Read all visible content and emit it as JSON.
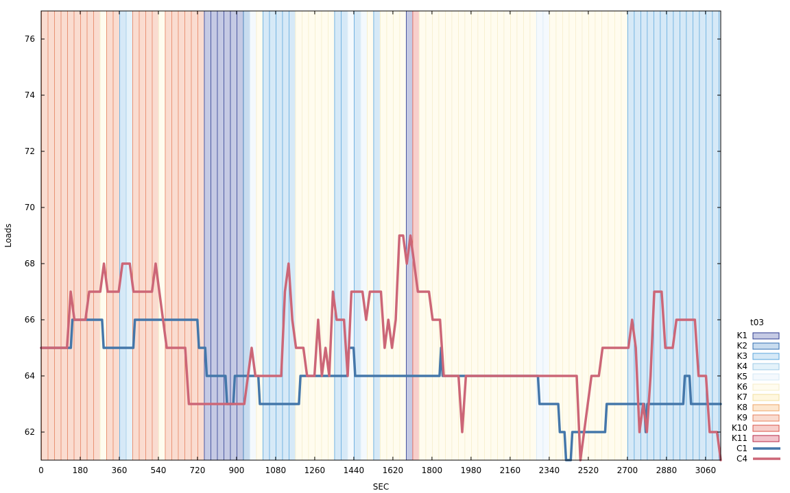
{
  "chart_data": {
    "type": "line",
    "xlabel": "SEC",
    "ylabel": "Loads",
    "xlim": [
      0,
      3130
    ],
    "ylim": [
      61,
      77
    ],
    "x_ticks": [
      0,
      180,
      360,
      540,
      720,
      900,
      1080,
      1260,
      1440,
      1620,
      1800,
      1980,
      2160,
      2340,
      2520,
      2700,
      2880,
      3060
    ],
    "y_ticks": [
      62,
      64,
      66,
      68,
      70,
      72,
      74,
      76
    ],
    "grid": false,
    "legend_position": "right",
    "legend_title": "t03",
    "bands": {
      "interval_sec": 30,
      "categories": [
        {
          "name": "K1",
          "fill": "#C5CAE4",
          "stroke": "#2B3A8F"
        },
        {
          "name": "K2",
          "fill": "#C8DCEF",
          "stroke": "#2F6DB0"
        },
        {
          "name": "K3",
          "fill": "#D6E9F7",
          "stroke": "#5AA6DC"
        },
        {
          "name": "K4",
          "fill": "#E4F2FA",
          "stroke": "#9CCBE7"
        },
        {
          "name": "K5",
          "fill": "#F4F9FD",
          "stroke": "#D6E9F5"
        },
        {
          "name": "K6",
          "fill": "#FFFCEF",
          "stroke": "#F5EDC8"
        },
        {
          "name": "K7",
          "fill": "#FFF7DF",
          "stroke": "#F2DFA0"
        },
        {
          "name": "K8",
          "fill": "#FDE7CF",
          "stroke": "#EDA66A"
        },
        {
          "name": "K9",
          "fill": "#FADCD0",
          "stroke": "#E5805E"
        },
        {
          "name": "K10",
          "fill": "#F7CFCB",
          "stroke": "#D9534A"
        },
        {
          "name": "K11",
          "fill": "#F2C4CC",
          "stroke": "#B52845"
        }
      ],
      "sequence": [
        "K9",
        "K9",
        "K9",
        "K9",
        "K9",
        "K9",
        "K9",
        "K9",
        "K9",
        "K6",
        "K9",
        "K9",
        "K3",
        "K4",
        "K9",
        "K9",
        "K9",
        "K9",
        "K6",
        "K9",
        "K9",
        "K9",
        "K9",
        "K9",
        "K9",
        "K1",
        "K1",
        "K1",
        "K1",
        "K1",
        "K1",
        "K2",
        "K5",
        "K6",
        "K3",
        "K3",
        "K3",
        "K3",
        "K3",
        "K6",
        "K6",
        "K6",
        "K6",
        "K6",
        "K6",
        "K3",
        "K3",
        "K5",
        "K3",
        "K5",
        "K6",
        "K3",
        "K6",
        "K6",
        "K6",
        "K6",
        "K1",
        "K10",
        "K6",
        "K6",
        "K6",
        "K6",
        "K6",
        "K6",
        "K6",
        "K6",
        "K6",
        "K6",
        "K6",
        "K6",
        "K6",
        "K6",
        "K6",
        "K6",
        "K6",
        "K6",
        "K5",
        "K5",
        "K6",
        "K6",
        "K6",
        "K6",
        "K6",
        "K6",
        "K6",
        "K6",
        "K6",
        "K6",
        "K6",
        "K6",
        "K3",
        "K3",
        "K3",
        "K3",
        "K3",
        "K3",
        "K3",
        "K3",
        "K3",
        "K3",
        "K3",
        "K3",
        "K3",
        "K3",
        "K3",
        "K3",
        "K3",
        "K3",
        "K3",
        "K3",
        "K3",
        "K3",
        "K3",
        "K3",
        "K3",
        "K3",
        "K3",
        "K3",
        "K3",
        "K3",
        "K3",
        "K3",
        "K3",
        "K3",
        "K3",
        "K3",
        "K3",
        "K3",
        "K3",
        "K3",
        "K6",
        "K6",
        "K6",
        "K6",
        "K6",
        "K6",
        "K6",
        "K6",
        "K6",
        "K6",
        "K6",
        "K6",
        "K6",
        "K6",
        "K6",
        "K6",
        "K6",
        "K6",
        "K6",
        "K6",
        "K6",
        "K6",
        "K6",
        "K6",
        "K6",
        "K6",
        "K6",
        "K6",
        "K6",
        "K6",
        "K6",
        "K6",
        "K6",
        "K3",
        "K3",
        "K3",
        "K3",
        "K3",
        "K3",
        "K3",
        "K3",
        "K3",
        "K3",
        "K3",
        "K3",
        "K3",
        "K3",
        "K3"
      ]
    },
    "series": [
      {
        "name": "C1",
        "color": "#4477AA",
        "values": [
          65,
          65,
          65,
          65,
          65,
          65,
          65,
          65,
          65,
          65,
          65,
          65,
          65,
          65,
          65,
          65,
          65,
          65,
          65,
          65,
          66,
          66,
          66,
          66,
          66,
          66,
          66,
          66,
          66,
          66,
          66,
          66,
          66,
          66,
          66,
          66,
          66,
          66,
          66,
          66,
          65,
          65,
          65,
          65,
          65,
          65,
          65,
          65,
          65,
          65,
          65,
          65,
          65,
          65,
          65,
          65,
          65,
          65,
          65,
          65,
          66,
          66,
          66,
          66,
          66,
          66,
          66,
          66,
          66,
          66,
          66,
          66,
          66,
          66,
          66,
          66,
          66,
          66,
          66,
          66,
          66,
          66,
          66,
          66,
          66,
          66,
          66,
          66,
          66,
          66,
          66,
          66,
          66,
          66,
          66,
          66,
          66,
          66,
          66,
          66,
          66,
          65,
          65,
          65,
          65,
          65,
          64,
          64,
          64,
          64,
          64,
          64,
          64,
          64,
          64,
          64,
          64,
          64,
          64,
          63,
          63,
          63,
          63,
          63,
          64,
          64,
          64,
          64,
          64,
          64,
          64,
          64,
          64,
          64,
          64,
          64,
          64,
          64,
          64,
          64,
          63,
          63,
          63,
          63,
          63,
          63,
          63,
          63,
          63,
          63,
          63,
          63,
          63,
          63,
          63,
          63,
          63,
          63,
          63,
          63,
          63,
          63,
          63,
          63,
          63,
          63,
          64,
          64,
          64,
          64,
          64,
          64,
          64,
          64,
          64,
          64,
          64,
          64,
          64,
          64,
          64,
          64,
          64,
          64,
          64,
          64,
          64,
          64,
          64,
          64,
          64,
          64,
          64,
          64,
          64,
          64,
          64,
          65,
          65,
          65,
          65,
          64,
          64,
          64,
          64,
          64,
          64,
          64,
          64,
          64,
          64,
          64,
          64,
          64,
          64,
          64,
          64,
          64,
          64,
          64,
          64,
          64,
          64,
          64,
          64,
          64,
          64,
          64,
          64,
          64,
          64,
          64,
          64,
          64,
          64,
          64,
          64,
          64,
          64,
          64,
          64,
          64,
          64,
          64,
          64,
          64,
          64,
          64,
          64,
          64,
          64,
          64,
          64,
          64,
          64,
          64,
          65,
          64,
          64,
          64,
          64,
          64,
          64,
          64,
          64,
          64,
          64,
          64,
          64,
          64,
          64,
          64,
          64,
          64,
          64,
          64,
          64,
          64,
          64,
          64,
          64,
          64,
          64,
          64,
          64,
          64,
          64,
          64,
          64,
          64,
          64,
          64,
          64,
          64,
          64,
          64,
          64,
          64,
          64,
          64,
          64,
          64,
          64,
          64,
          64,
          64,
          64,
          64,
          64,
          64,
          64,
          64,
          64,
          64,
          64,
          64,
          64,
          64,
          64,
          63,
          63,
          63,
          63,
          63,
          63,
          63,
          63,
          63,
          63,
          63,
          63,
          63,
          62,
          62,
          62,
          62,
          61,
          61,
          61,
          61,
          62,
          62,
          62,
          62,
          62,
          62,
          62,
          62,
          62,
          62,
          62,
          62,
          62,
          62,
          62,
          62,
          62,
          62,
          62,
          62,
          62,
          62,
          63,
          63,
          63,
          63,
          63,
          63,
          63,
          63,
          63,
          63,
          63,
          63,
          63,
          63,
          63,
          63,
          63,
          63,
          63,
          63,
          63,
          63,
          63,
          63,
          63,
          62,
          63,
          63,
          63,
          63,
          63,
          63,
          63,
          63,
          63,
          63,
          63,
          63,
          63,
          63,
          63,
          63,
          63,
          63,
          63,
          63,
          63,
          63,
          63,
          63,
          64,
          64,
          64,
          64,
          63,
          63,
          63,
          63,
          63,
          63,
          63,
          63,
          63,
          63,
          63,
          63,
          63,
          63,
          63,
          63,
          63,
          63,
          63,
          63
        ]
      },
      {
        "name": "C4",
        "color": "#CC6677",
        "values": [
          65,
          65,
          65,
          65,
          65,
          65,
          65,
          65,
          67,
          66,
          66,
          66,
          66,
          67,
          67,
          67,
          67,
          68,
          67,
          67,
          67,
          67,
          68,
          68,
          68,
          67,
          67,
          67,
          67,
          67,
          67,
          68,
          67,
          66,
          65,
          65,
          65,
          65,
          65,
          65,
          63,
          63,
          63,
          63,
          63,
          63,
          63,
          63,
          63,
          63,
          63,
          63,
          63,
          63,
          63,
          63,
          64,
          65,
          64,
          64,
          64,
          64,
          64,
          64,
          64,
          64,
          67,
          68,
          66,
          65,
          65,
          65,
          64,
          64,
          64,
          66,
          64,
          65,
          64,
          67,
          66,
          66,
          66,
          64,
          67,
          67,
          67,
          67,
          66,
          67,
          67,
          67,
          67,
          65,
          66,
          65,
          66,
          69,
          69,
          68,
          69,
          68,
          67,
          67,
          67,
          67,
          66,
          66,
          66,
          64,
          64,
          64,
          64,
          64,
          62,
          64,
          64,
          64,
          64,
          64,
          64,
          64,
          64,
          64,
          64,
          64,
          64,
          64,
          64,
          64,
          64,
          64,
          64,
          64,
          64,
          64,
          64,
          64,
          64,
          64,
          64,
          64,
          64,
          64,
          64,
          64,
          61,
          62,
          63,
          64,
          64,
          64,
          65,
          65,
          65,
          65,
          65,
          65,
          65,
          65,
          66,
          65,
          62,
          63,
          62,
          64,
          67,
          67,
          67,
          65,
          65,
          65,
          66,
          66,
          66,
          66,
          66,
          66,
          64,
          64,
          64,
          62,
          62,
          62,
          61
        ]
      }
    ]
  }
}
